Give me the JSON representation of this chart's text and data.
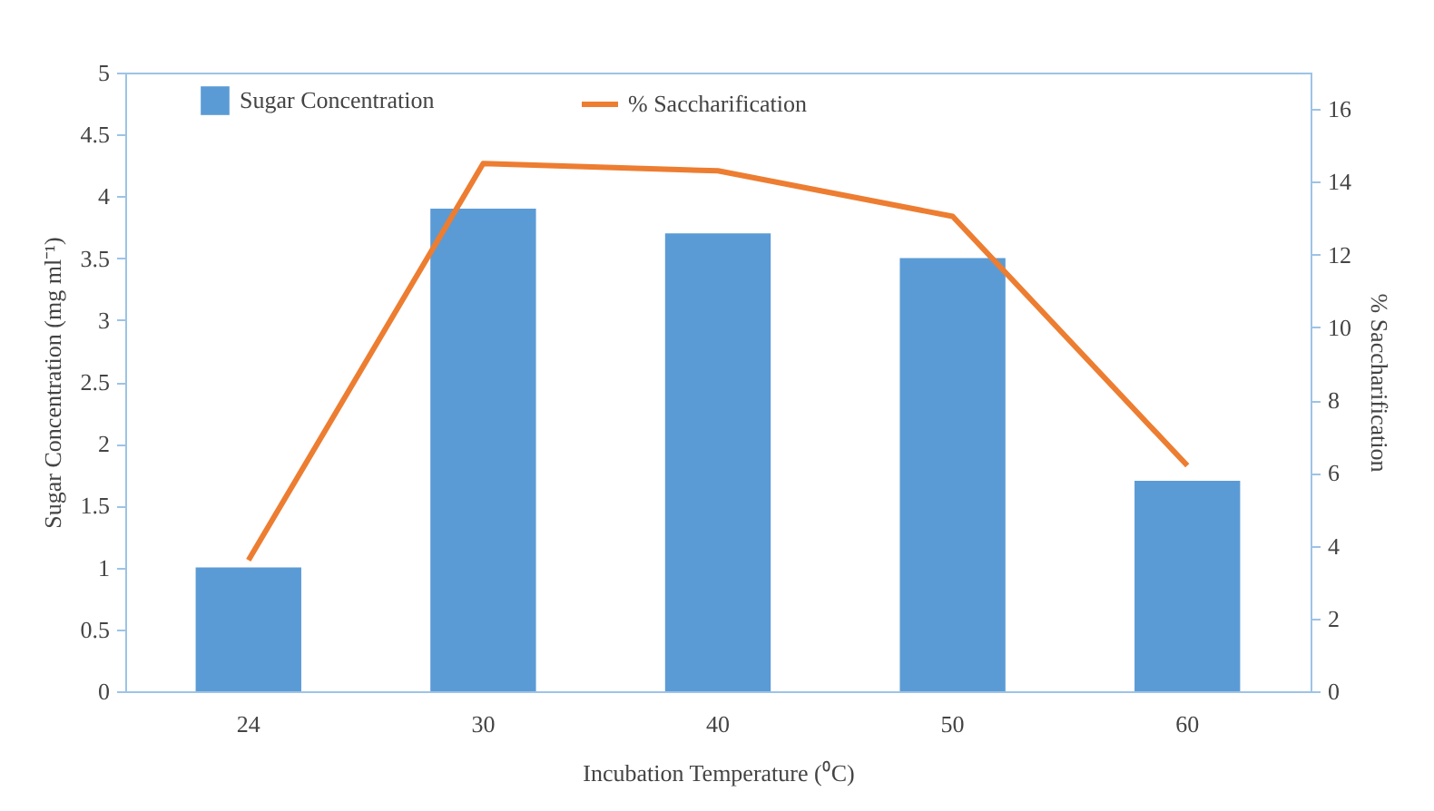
{
  "chart_data": {
    "type": "bar",
    "categories": [
      "24",
      "30",
      "40",
      "50",
      "60"
    ],
    "xlabel": "Incubation Temperature (⁰C)",
    "ylabel": "Sugar Concentration (mg ml⁻¹)",
    "y2label": "% Saccharification",
    "series": [
      {
        "name": "Sugar Concentration",
        "color": "#5b9bd5",
        "values": [
          1.0,
          3.9,
          3.7,
          3.5,
          1.7
        ]
      },
      {
        "name": "% Saccharification",
        "type": "line",
        "axis": "y2",
        "color": "#ed7d31",
        "values": [
          3.6,
          14.5,
          14.3,
          13.05,
          6.2
        ]
      }
    ],
    "ylim": [
      0,
      5
    ],
    "yticks": [
      0,
      0.5,
      1,
      1.5,
      2,
      2.5,
      3,
      3.5,
      4,
      4.5,
      5
    ],
    "y2lim": [
      0,
      17
    ],
    "y2ticks": [
      0,
      2,
      4,
      6,
      8,
      10,
      12,
      14,
      16
    ],
    "grid": false,
    "legend": "top",
    "marker": "none",
    "line_style": "solid"
  }
}
